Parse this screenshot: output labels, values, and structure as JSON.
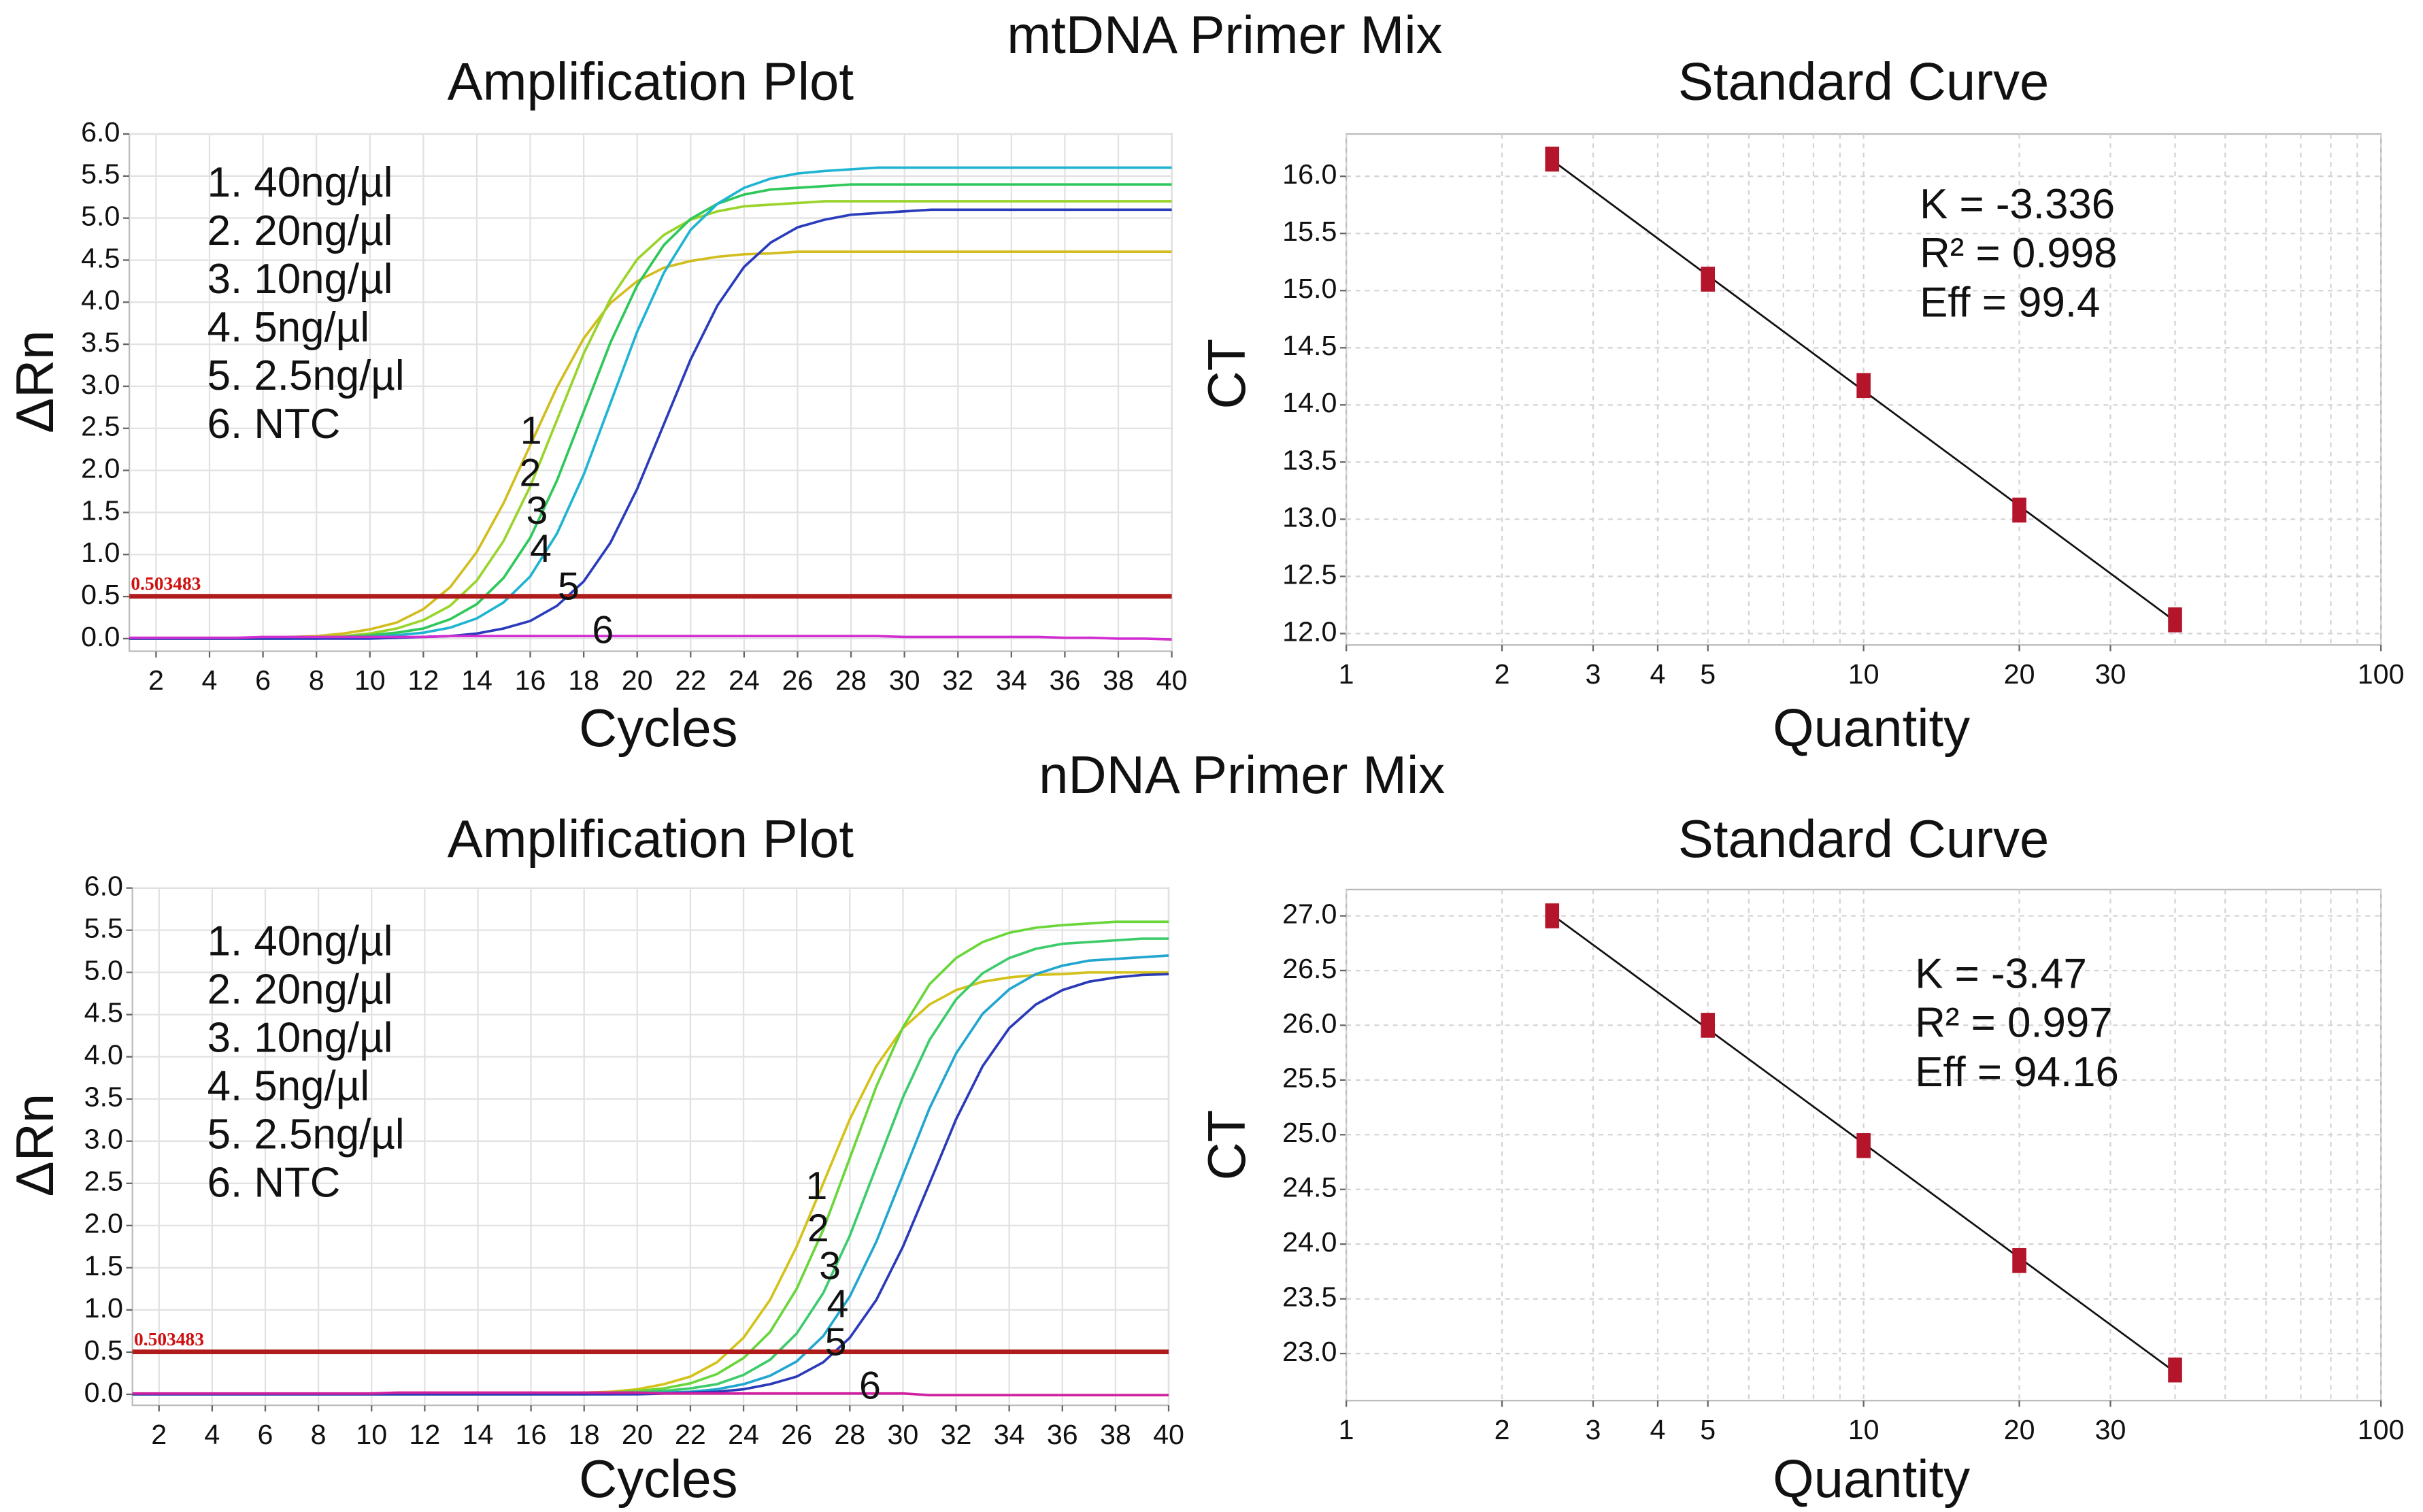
{
  "figure_titles": [
    "mtDNA Primer Mix",
    "nDNA Primer Mix"
  ],
  "chart_data": [
    {
      "type": "line",
      "title": "Amplification Plot",
      "x_label": "Cycles",
      "y_label": "ΔRn",
      "x": [
        1,
        2,
        3,
        4,
        5,
        6,
        7,
        8,
        9,
        10,
        11,
        12,
        13,
        14,
        15,
        16,
        17,
        18,
        19,
        20,
        21,
        22,
        23,
        24,
        25,
        26,
        27,
        28,
        29,
        30,
        31,
        32,
        33,
        34,
        35,
        36,
        37,
        38,
        39,
        40
      ],
      "series": [
        {
          "name": "1. 40ng/µl",
          "label": "1",
          "color": "#d2bd1e",
          "values": [
            0,
            0,
            0,
            0,
            0,
            0.01,
            0.02,
            0.03,
            0.06,
            0.11,
            0.19,
            0.35,
            0.61,
            1.03,
            1.61,
            2.3,
            2.99,
            3.57,
            3.99,
            4.25,
            4.41,
            4.49,
            4.54,
            4.57,
            4.58,
            4.6,
            4.6,
            4.6,
            4.6,
            4.6,
            4.6,
            4.6,
            4.6,
            4.6,
            4.6,
            4.6,
            4.6,
            4.6,
            4.6,
            4.6
          ]
        },
        {
          "name": "2. 20ng/µl",
          "label": "2",
          "color": "#9ad42a",
          "values": [
            0,
            0,
            0,
            0,
            0,
            0,
            0.01,
            0.02,
            0.03,
            0.06,
            0.12,
            0.22,
            0.39,
            0.69,
            1.16,
            1.81,
            2.6,
            3.39,
            4.04,
            4.51,
            4.8,
            4.98,
            5.08,
            5.14,
            5.16,
            5.18,
            5.2,
            5.2,
            5.2,
            5.2,
            5.2,
            5.2,
            5.2,
            5.2,
            5.2,
            5.2,
            5.2,
            5.2,
            5.2,
            5.2
          ]
        },
        {
          "name": "3. 10ng/µl",
          "label": "3",
          "color": "#2ec85a",
          "values": [
            0,
            0,
            0,
            0,
            0,
            0,
            0,
            0.01,
            0.02,
            0.04,
            0.07,
            0.12,
            0.23,
            0.41,
            0.72,
            1.2,
            1.88,
            2.7,
            3.52,
            4.2,
            4.68,
            4.99,
            5.17,
            5.28,
            5.34,
            5.36,
            5.38,
            5.4,
            5.4,
            5.4,
            5.4,
            5.4,
            5.4,
            5.4,
            5.4,
            5.4,
            5.4,
            5.4,
            5.4,
            5.4
          ]
        },
        {
          "name": "4. 5ng/µl",
          "label": "4",
          "color": "#1eb4d2",
          "values": [
            0,
            0,
            0,
            0,
            0,
            0,
            0,
            0,
            0.01,
            0.02,
            0.04,
            0.07,
            0.13,
            0.24,
            0.43,
            0.74,
            1.25,
            1.95,
            2.8,
            3.65,
            4.35,
            4.86,
            5.17,
            5.36,
            5.47,
            5.53,
            5.56,
            5.58,
            5.6,
            5.6,
            5.6,
            5.6,
            5.6,
            5.6,
            5.6,
            5.6,
            5.6,
            5.6,
            5.6,
            5.6
          ]
        },
        {
          "name": "5. 2.5ng/µl",
          "label": "5",
          "color": "#2a3cbc",
          "values": [
            0,
            0,
            0,
            0,
            0,
            0,
            0,
            0,
            0,
            0,
            0.01,
            0.02,
            0.03,
            0.06,
            0.12,
            0.21,
            0.39,
            0.68,
            1.14,
            1.78,
            2.55,
            3.32,
            3.96,
            4.42,
            4.71,
            4.89,
            4.98,
            5.04,
            5.06,
            5.08,
            5.1,
            5.1,
            5.1,
            5.1,
            5.1,
            5.1,
            5.1,
            5.1,
            5.1,
            5.1
          ]
        },
        {
          "name": "6. NTC",
          "label": "6",
          "color": "#d02ed0",
          "values": [
            0.01,
            0.01,
            0.01,
            0.01,
            0.01,
            0.02,
            0.02,
            0.02,
            0.02,
            0.02,
            0.02,
            0.02,
            0.03,
            0.03,
            0.03,
            0.03,
            0.03,
            0.03,
            0.03,
            0.03,
            0.03,
            0.03,
            0.03,
            0.03,
            0.03,
            0.03,
            0.03,
            0.03,
            0.03,
            0.02,
            0.02,
            0.02,
            0.02,
            0.02,
            0.02,
            0.01,
            0.01,
            0,
            0,
            -0.01
          ]
        }
      ],
      "threshold": 0.503483,
      "threshold_color": "#b01c1c",
      "xlim": [
        1,
        40
      ],
      "xticks": [
        2,
        4,
        6,
        8,
        10,
        12,
        14,
        16,
        18,
        20,
        22,
        24,
        26,
        28,
        30,
        32,
        34,
        36,
        38,
        40
      ],
      "ylim": [
        -0.15,
        6.0
      ],
      "yticks": [
        {
          "value": 0,
          "label": "0.0"
        },
        0.5,
        {
          "value": 1,
          "label": "1.0"
        },
        1.5,
        {
          "value": 2,
          "label": "2.0"
        },
        2.5,
        {
          "value": 3,
          "label": "3.0"
        },
        3.5,
        {
          "value": 4,
          "label": "4.0"
        },
        4.5,
        {
          "value": 5,
          "label": "5.0"
        },
        5.5,
        {
          "value": 6,
          "label": "6.0"
        }
      ],
      "grid": true
    },
    {
      "type": "scatter",
      "title": "Standard Curve",
      "x_label": "Quantity",
      "y_label": "CT",
      "x": [
        2.5,
        5,
        10,
        20,
        40
      ],
      "values": [
        16.15,
        15.1,
        14.17,
        13.08,
        12.12
      ],
      "color": "#b5152b",
      "annotations": [
        "K = -3.336",
        "R² = 0.998",
        "Eff = 99.4"
      ],
      "xscale": "log",
      "xlim": [
        1,
        100
      ],
      "xticks": [
        1,
        2,
        3,
        4,
        5,
        10,
        20,
        30,
        100
      ],
      "minor_xticks": [
        6,
        7,
        8,
        9,
        40,
        50,
        60,
        70,
        80,
        90
      ],
      "ylim": [
        11.9,
        16.37
      ],
      "yticks": [
        {
          "value": 12,
          "label": "12.0"
        },
        12.5,
        {
          "value": 13,
          "label": "13.0"
        },
        13.5,
        {
          "value": 14,
          "label": "14.0"
        },
        14.5,
        {
          "value": 15,
          "label": "15.0"
        },
        15.5,
        {
          "value": 16,
          "label": "16.0"
        }
      ],
      "fit_line": true,
      "grid": true
    },
    {
      "type": "line",
      "title": "Amplification Plot",
      "x_label": "Cycles",
      "y_label": "ΔRn",
      "x": [
        1,
        2,
        3,
        4,
        5,
        6,
        7,
        8,
        9,
        10,
        11,
        12,
        13,
        14,
        15,
        16,
        17,
        18,
        19,
        20,
        21,
        22,
        23,
        24,
        25,
        26,
        27,
        28,
        29,
        30,
        31,
        32,
        33,
        34,
        35,
        36,
        37,
        38,
        39,
        40
      ],
      "series": [
        {
          "name": "1. 40ng/µl",
          "label": "1",
          "color": "#d4c21a",
          "values": [
            0,
            0,
            0,
            0,
            0,
            0,
            0,
            0,
            0,
            0,
            0,
            0,
            0,
            0,
            0,
            0,
            0.01,
            0.02,
            0.03,
            0.06,
            0.12,
            0.21,
            0.38,
            0.67,
            1.12,
            1.75,
            2.5,
            3.26,
            3.89,
            4.34,
            4.62,
            4.79,
            4.89,
            4.94,
            4.97,
            4.98,
            5.0,
            5.0,
            5.0,
            5.0
          ]
        },
        {
          "name": "2. 20ng/µl",
          "label": "2",
          "color": "#6ad63a",
          "values": [
            0,
            0,
            0,
            0,
            0,
            0,
            0,
            0,
            0,
            0,
            0,
            0,
            0,
            0,
            0,
            0,
            0,
            0.01,
            0.02,
            0.04,
            0.07,
            0.13,
            0.24,
            0.43,
            0.74,
            1.25,
            1.95,
            2.8,
            3.65,
            4.35,
            4.86,
            5.17,
            5.36,
            5.47,
            5.53,
            5.56,
            5.58,
            5.6,
            5.6,
            5.6
          ]
        },
        {
          "name": "3. 10ng/µl",
          "label": "3",
          "color": "#3ccc6a",
          "values": [
            0,
            0,
            0,
            0,
            0,
            0,
            0,
            0,
            0,
            0,
            0,
            0,
            0,
            0,
            0,
            0,
            0,
            0,
            0.01,
            0.02,
            0.04,
            0.07,
            0.12,
            0.23,
            0.41,
            0.72,
            1.2,
            1.88,
            2.7,
            3.52,
            4.2,
            4.68,
            4.99,
            5.17,
            5.28,
            5.34,
            5.36,
            5.38,
            5.4,
            5.4
          ]
        },
        {
          "name": "4. 5ng/µl",
          "label": "4",
          "color": "#22a6d0",
          "values": [
            0,
            0,
            0,
            0,
            0,
            0,
            0,
            0,
            0,
            0,
            0,
            0,
            0,
            0,
            0,
            0,
            0,
            0,
            0,
            0.01,
            0.02,
            0.03,
            0.06,
            0.12,
            0.22,
            0.39,
            0.69,
            1.16,
            1.81,
            2.6,
            3.39,
            4.04,
            4.51,
            4.8,
            4.98,
            5.08,
            5.14,
            5.16,
            5.18,
            5.2
          ]
        },
        {
          "name": "5. 2.5ng/µl",
          "label": "5",
          "color": "#2a3ab8",
          "values": [
            0,
            0,
            0,
            0,
            0,
            0,
            0,
            0,
            0,
            0,
            0,
            0,
            0,
            0,
            0,
            0,
            0,
            0,
            0,
            0,
            0.01,
            0.02,
            0.03,
            0.06,
            0.12,
            0.21,
            0.38,
            0.67,
            1.12,
            1.75,
            2.5,
            3.26,
            3.89,
            4.34,
            4.62,
            4.79,
            4.89,
            4.94,
            4.97,
            4.98
          ]
        },
        {
          "name": "6. NTC",
          "label": "6",
          "color": "#d020a0",
          "values": [
            0.01,
            0.01,
            0.01,
            0.01,
            0.01,
            0.01,
            0.01,
            0.01,
            0.01,
            0.01,
            0.02,
            0.02,
            0.02,
            0.02,
            0.02,
            0.02,
            0.02,
            0.02,
            0.02,
            0.02,
            0.01,
            0.01,
            0.01,
            0.01,
            0.01,
            0.01,
            0.01,
            0.01,
            0.01,
            0.01,
            -0.01,
            -0.01,
            -0.01,
            -0.01,
            -0.01,
            -0.01,
            -0.01,
            -0.01,
            -0.01,
            -0.01
          ]
        }
      ],
      "threshold": 0.503483,
      "threshold_color": "#b01c1c",
      "xlim": [
        1,
        40
      ],
      "xticks": [
        2,
        4,
        6,
        8,
        10,
        12,
        14,
        16,
        18,
        20,
        22,
        24,
        26,
        28,
        30,
        32,
        34,
        36,
        38,
        40
      ],
      "ylim": [
        -0.13,
        6.0
      ],
      "yticks": [
        {
          "value": 0,
          "label": "0.0"
        },
        0.5,
        {
          "value": 1,
          "label": "1.0"
        },
        1.5,
        {
          "value": 2,
          "label": "2.0"
        },
        2.5,
        {
          "value": 3,
          "label": "3.0"
        },
        3.5,
        {
          "value": 4,
          "label": "4.0"
        },
        4.5,
        {
          "value": 5,
          "label": "5.0"
        },
        5.5,
        {
          "value": 6,
          "label": "6.0"
        }
      ],
      "grid": true
    },
    {
      "type": "scatter",
      "title": "Standard Curve",
      "x_label": "Quantity",
      "y_label": "CT",
      "x": [
        2.5,
        5,
        10,
        20,
        40
      ],
      "values": [
        27.0,
        26.0,
        24.9,
        23.85,
        22.85
      ],
      "color": "#b5152b",
      "annotations": [
        "K = -3.47",
        "R² = 0.997",
        "Eff = 94.16"
      ],
      "xscale": "log",
      "xlim": [
        1,
        100
      ],
      "xticks": [
        1,
        2,
        3,
        4,
        5,
        10,
        20,
        30,
        100
      ],
      "minor_xticks": [
        6,
        7,
        8,
        9,
        40,
        50,
        60,
        70,
        80,
        90
      ],
      "ylim": [
        22.57,
        27.24
      ],
      "yticks": [
        {
          "value": 23,
          "label": "23.0"
        },
        23.5,
        {
          "value": 24,
          "label": "24.0"
        },
        24.5,
        {
          "value": 25,
          "label": "25.0"
        },
        25.5,
        {
          "value": 26,
          "label": "26.0"
        },
        26.5,
        {
          "value": 27,
          "label": "27.0"
        }
      ],
      "fit_line": true,
      "grid": true
    }
  ]
}
